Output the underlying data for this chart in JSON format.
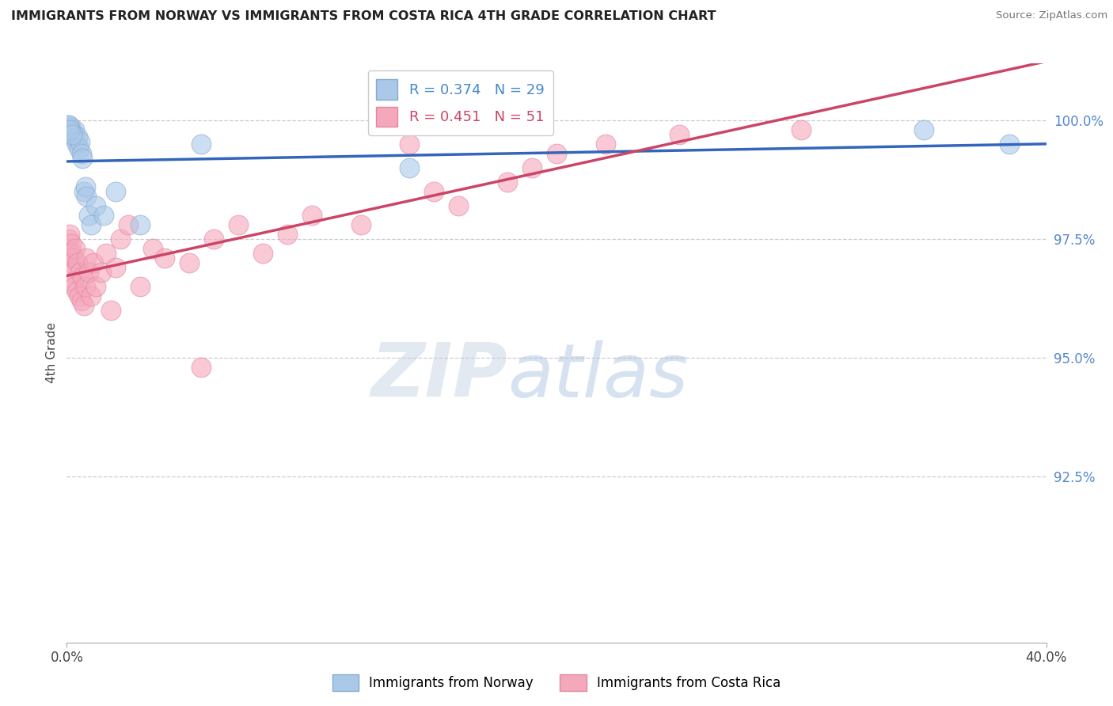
{
  "title": "IMMIGRANTS FROM NORWAY VS IMMIGRANTS FROM COSTA RICA 4TH GRADE CORRELATION CHART",
  "source": "Source: ZipAtlas.com",
  "ylabel": "4th Grade",
  "xmin": 0.0,
  "xmax": 40.0,
  "ymin": 89.0,
  "ymax": 101.2,
  "norway_color": "#aac8e8",
  "costa_rica_color": "#f5a8bc",
  "norway_edge": "#88aad0",
  "costa_rica_edge": "#e088a0",
  "norway_line_color": "#3366bb",
  "costa_rica_line_color": "#cc4466",
  "legend_norway_R": "0.374",
  "legend_norway_N": "29",
  "legend_costa_rica_R": "0.451",
  "legend_costa_rica_N": "51",
  "watermark_zip": "ZIP",
  "watermark_atlas": "atlas",
  "norway_x": [
    0.05,
    0.1,
    0.15,
    0.2,
    0.25,
    0.3,
    0.35,
    0.4,
    0.45,
    0.5,
    0.55,
    0.6,
    0.65,
    0.7,
    0.75,
    0.8,
    0.9,
    1.0,
    1.2,
    1.5,
    2.0,
    3.0,
    5.5,
    14.0,
    35.0,
    38.5,
    0.08,
    0.12,
    0.22
  ],
  "norway_y": [
    99.9,
    99.8,
    99.85,
    99.7,
    99.75,
    99.8,
    99.6,
    99.5,
    99.65,
    99.4,
    99.55,
    99.3,
    99.2,
    98.5,
    98.6,
    98.4,
    98.0,
    97.8,
    98.2,
    98.0,
    98.5,
    97.8,
    99.5,
    99.0,
    99.8,
    99.5,
    99.9,
    99.8,
    99.7
  ],
  "costa_rica_x": [
    0.05,
    0.08,
    0.1,
    0.12,
    0.15,
    0.18,
    0.2,
    0.22,
    0.25,
    0.28,
    0.3,
    0.35,
    0.4,
    0.45,
    0.5,
    0.55,
    0.6,
    0.65,
    0.7,
    0.75,
    0.8,
    0.9,
    1.0,
    1.1,
    1.2,
    1.4,
    1.6,
    1.8,
    2.0,
    2.2,
    2.5,
    3.0,
    3.5,
    4.0,
    5.0,
    5.5,
    6.0,
    7.0,
    8.0,
    9.0,
    10.0,
    12.0,
    14.0,
    15.0,
    16.0,
    18.0,
    19.0,
    20.0,
    22.0,
    25.0,
    30.0
  ],
  "costa_rica_y": [
    97.3,
    97.5,
    97.2,
    97.6,
    97.0,
    97.4,
    96.8,
    97.2,
    96.6,
    97.1,
    96.5,
    97.3,
    96.4,
    97.0,
    96.3,
    96.8,
    96.2,
    96.7,
    96.1,
    96.5,
    97.1,
    96.8,
    96.3,
    97.0,
    96.5,
    96.8,
    97.2,
    96.0,
    96.9,
    97.5,
    97.8,
    96.5,
    97.3,
    97.1,
    97.0,
    94.8,
    97.5,
    97.8,
    97.2,
    97.6,
    98.0,
    97.8,
    99.5,
    98.5,
    98.2,
    98.7,
    99.0,
    99.3,
    99.5,
    99.7,
    99.8
  ]
}
